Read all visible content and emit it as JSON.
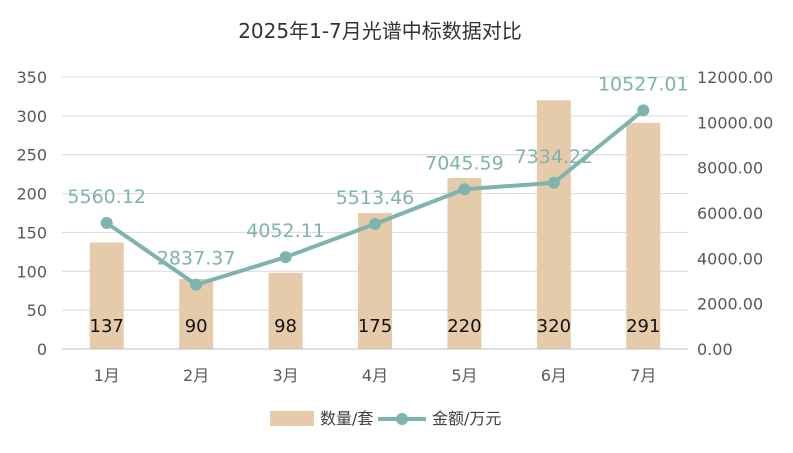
{
  "chart_data": {
    "type": "bar",
    "title": "2025年1-7月光谱中标数据对比",
    "categories": [
      "1月",
      "2月",
      "3月",
      "4月",
      "5月",
      "6月",
      "7月"
    ],
    "series": [
      {
        "name": "数量/套",
        "type": "bar",
        "axis": "left",
        "color": "#e6cbab",
        "values": [
          137,
          90,
          98,
          175,
          220,
          320,
          291
        ],
        "labels": [
          "137",
          "90",
          "98",
          "175",
          "220",
          "320",
          "291"
        ]
      },
      {
        "name": "金额/万元",
        "type": "line",
        "axis": "right",
        "color": "#7fb3ad",
        "values": [
          5560.12,
          2837.37,
          4052.11,
          5513.46,
          7045.59,
          7334.22,
          10527.01
        ],
        "labels": [
          "5560.12",
          "2837.37",
          "4052.11",
          "5513.46",
          "7045.59",
          "7334.22",
          "10527.01"
        ]
      }
    ],
    "y_left": {
      "min": 0,
      "max": 350,
      "ticks": [
        "0",
        "50",
        "100",
        "150",
        "200",
        "250",
        "300",
        "350"
      ]
    },
    "y_right": {
      "min": 0,
      "max": 12000,
      "ticks": [
        "0.00",
        "2000.00",
        "4000.00",
        "6000.00",
        "8000.00",
        "10000.00",
        "12000.00"
      ]
    },
    "grid": true,
    "legend_position": "bottom"
  }
}
